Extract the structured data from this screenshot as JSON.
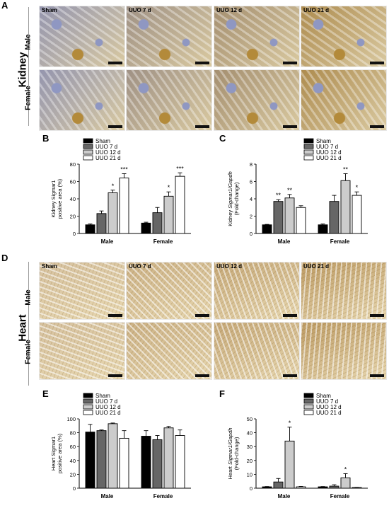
{
  "panels": {
    "A": "A",
    "B": "B",
    "C": "C",
    "D": "D",
    "E": "E",
    "F": "F"
  },
  "micrographs": {
    "columns": [
      "Sham",
      "UUO 7 d",
      "UUO 12 d",
      "UUO 21 d"
    ],
    "rows": [
      "Male",
      "Female"
    ],
    "kidney_label": "Kidney",
    "heart_label": "Heart"
  },
  "colors": {
    "sham": "#000000",
    "uuo7": "#666666",
    "uuo12": "#cccccc",
    "uuo21": "#ffffff",
    "kidney_tissue": "#d9c9a0",
    "kidney_stain": "#b38a3a",
    "kidney_counter": "#8f97c2",
    "heart_tissue": "#e7d7b0",
    "heart_stain": "#a5782d"
  },
  "chart_data": [
    {
      "panel": "B",
      "type": "bar",
      "categories": [
        "Male",
        "Female"
      ],
      "series": [
        {
          "name": "Sham",
          "values": [
            10,
            12
          ],
          "errors": [
            1,
            1
          ],
          "sig": [
            "",
            ""
          ]
        },
        {
          "name": "UUO 7 d",
          "values": [
            23,
            24
          ],
          "errors": [
            3,
            6
          ],
          "sig": [
            "",
            ""
          ]
        },
        {
          "name": "UUO 12 d",
          "values": [
            47,
            43
          ],
          "errors": [
            3,
            5
          ],
          "sig": [
            "*",
            "*"
          ]
        },
        {
          "name": "UUO 21 d",
          "values": [
            64,
            66
          ],
          "errors": [
            5,
            4
          ],
          "sig": [
            "***",
            "***"
          ]
        }
      ],
      "ylabel_lines": [
        "Kidney Sigmar1",
        "positive area (%)"
      ],
      "ylim": [
        0,
        80
      ],
      "yticks": [
        "0",
        "20",
        "40",
        "60",
        "80"
      ],
      "legend_position": "top-left"
    },
    {
      "panel": "C",
      "type": "bar",
      "categories": [
        "Male",
        "Female"
      ],
      "series": [
        {
          "name": "Sham",
          "values": [
            1.0,
            1.0
          ],
          "errors": [
            0.05,
            0.1
          ],
          "sig": [
            "",
            ""
          ]
        },
        {
          "name": "UUO 7 d",
          "values": [
            3.7,
            3.7
          ],
          "errors": [
            0.2,
            0.7
          ],
          "sig": [
            "**",
            ""
          ]
        },
        {
          "name": "UUO 12 d",
          "values": [
            4.1,
            6.1
          ],
          "errors": [
            0.4,
            0.8
          ],
          "sig": [
            "**",
            "**"
          ]
        },
        {
          "name": "UUO 21 d",
          "values": [
            3.0,
            4.4
          ],
          "errors": [
            0.2,
            0.4
          ],
          "sig": [
            "",
            "*"
          ]
        }
      ],
      "ylabel_lines": [
        "Kidney Sigmar1/Gapdh",
        "(Fold-change)"
      ],
      "ylim": [
        0,
        8
      ],
      "yticks": [
        "0",
        "2",
        "4",
        "6",
        "8"
      ],
      "legend_position": "top-right"
    },
    {
      "panel": "E",
      "type": "bar",
      "categories": [
        "Male",
        "Female"
      ],
      "series": [
        {
          "name": "Sham",
          "values": [
            81,
            75
          ],
          "errors": [
            11,
            8
          ],
          "sig": [
            "",
            ""
          ]
        },
        {
          "name": "UUO 7 d",
          "values": [
            83,
            70
          ],
          "errors": [
            1,
            6
          ],
          "sig": [
            "",
            ""
          ]
        },
        {
          "name": "UUO 12 d",
          "values": [
            93,
            87
          ],
          "errors": [
            1,
            2
          ],
          "sig": [
            "",
            ""
          ]
        },
        {
          "name": "UUO 21 d",
          "values": [
            72,
            76
          ],
          "errors": [
            11,
            8
          ],
          "sig": [
            "",
            ""
          ]
        }
      ],
      "ylabel_lines": [
        "Heart Sigmar1",
        "positive area (%)"
      ],
      "ylim": [
        0,
        100
      ],
      "yticks": [
        "0",
        "20",
        "40",
        "60",
        "80",
        "100"
      ],
      "legend_position": "top-left"
    },
    {
      "panel": "F",
      "type": "bar",
      "categories": [
        "Male",
        "Female"
      ],
      "series": [
        {
          "name": "Sham",
          "values": [
            1,
            1
          ],
          "errors": [
            0.2,
            0.2
          ],
          "sig": [
            "",
            ""
          ]
        },
        {
          "name": "UUO 7 d",
          "values": [
            4.5,
            1.5
          ],
          "errors": [
            2.5,
            1
          ],
          "sig": [
            "",
            ""
          ]
        },
        {
          "name": "UUO 12 d",
          "values": [
            34,
            7.5
          ],
          "errors": [
            10,
            3
          ],
          "sig": [
            "*",
            "*"
          ]
        },
        {
          "name": "UUO 21 d",
          "values": [
            1,
            0.5
          ],
          "errors": [
            0.3,
            0.1
          ],
          "sig": [
            "",
            ""
          ]
        }
      ],
      "ylabel_lines": [
        "Heart Sigmar1/Gapdh",
        "(Fold-change)"
      ],
      "ylim": [
        0,
        50
      ],
      "yticks": [
        "0",
        "10",
        "20",
        "30",
        "40",
        "50"
      ],
      "legend_position": "top-right"
    }
  ]
}
